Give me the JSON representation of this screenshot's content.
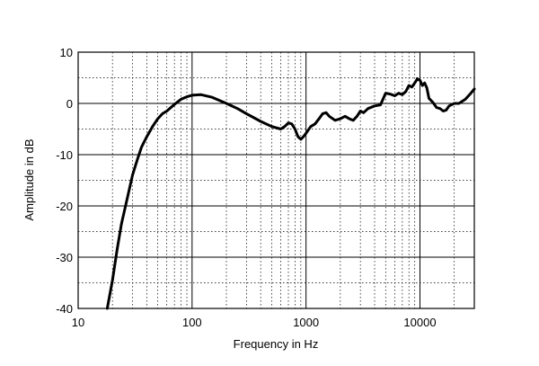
{
  "chart_data": {
    "type": "line",
    "title": "",
    "xlabel": "Frequency in Hz",
    "ylabel": "Amplitude in dB",
    "xscale": "log",
    "xlim": [
      10,
      30000
    ],
    "ylim": [
      -40,
      10
    ],
    "grid": true,
    "x_ticks": [
      10,
      100,
      1000,
      10000
    ],
    "x_tick_labels": [
      "10",
      "100",
      "1000",
      "10000"
    ],
    "y_ticks": [
      -40,
      -30,
      -20,
      -10,
      0,
      10
    ],
    "y_tick_labels": [
      "-40",
      "-30",
      "-20",
      "-10",
      "0",
      "10"
    ],
    "series": [
      {
        "name": "",
        "color": "#000000",
        "points": [
          [
            18,
            -40
          ],
          [
            20,
            -34.5
          ],
          [
            22,
            -28.5
          ],
          [
            24,
            -23.5
          ],
          [
            27,
            -18.5
          ],
          [
            30,
            -14
          ],
          [
            33,
            -11
          ],
          [
            36,
            -8.5
          ],
          [
            40,
            -6.5
          ],
          [
            45,
            -4.5
          ],
          [
            50,
            -3
          ],
          [
            55,
            -2
          ],
          [
            60,
            -1.5
          ],
          [
            65,
            -0.8
          ],
          [
            70,
            -0.2
          ],
          [
            80,
            0.8
          ],
          [
            90,
            1.3
          ],
          [
            100,
            1.6
          ],
          [
            120,
            1.7
          ],
          [
            150,
            1.2
          ],
          [
            200,
            0
          ],
          [
            250,
            -1
          ],
          [
            300,
            -2
          ],
          [
            400,
            -3.5
          ],
          [
            500,
            -4.5
          ],
          [
            600,
            -5
          ],
          [
            650,
            -4.5
          ],
          [
            700,
            -3.8
          ],
          [
            750,
            -4
          ],
          [
            800,
            -5
          ],
          [
            850,
            -6.5
          ],
          [
            900,
            -7
          ],
          [
            950,
            -6.5
          ],
          [
            1000,
            -5.8
          ],
          [
            1100,
            -4.5
          ],
          [
            1200,
            -4
          ],
          [
            1300,
            -3
          ],
          [
            1400,
            -2
          ],
          [
            1500,
            -1.8
          ],
          [
            1600,
            -2.5
          ],
          [
            1800,
            -3.3
          ],
          [
            2000,
            -3
          ],
          [
            2200,
            -2.5
          ],
          [
            2400,
            -3
          ],
          [
            2600,
            -3.3
          ],
          [
            2800,
            -2.5
          ],
          [
            3000,
            -1.5
          ],
          [
            3200,
            -1.8
          ],
          [
            3500,
            -1
          ],
          [
            4000,
            -0.5
          ],
          [
            4500,
            -0.3
          ],
          [
            5000,
            2
          ],
          [
            5500,
            1.8
          ],
          [
            6000,
            1.5
          ],
          [
            6500,
            2
          ],
          [
            7000,
            1.7
          ],
          [
            7500,
            2.3
          ],
          [
            8000,
            3.5
          ],
          [
            8500,
            3.2
          ],
          [
            9000,
            4
          ],
          [
            9500,
            4.8
          ],
          [
            10000,
            4.5
          ],
          [
            10500,
            3.5
          ],
          [
            11000,
            4
          ],
          [
            11500,
            3
          ],
          [
            12000,
            1
          ],
          [
            13000,
            0.2
          ],
          [
            14000,
            -0.8
          ],
          [
            15000,
            -1
          ],
          [
            16000,
            -1.5
          ],
          [
            17000,
            -1.3
          ],
          [
            18000,
            -0.5
          ],
          [
            20000,
            0
          ],
          [
            22000,
            0
          ],
          [
            25000,
            0.8
          ],
          [
            28000,
            2
          ],
          [
            30000,
            2.8
          ]
        ]
      }
    ]
  }
}
